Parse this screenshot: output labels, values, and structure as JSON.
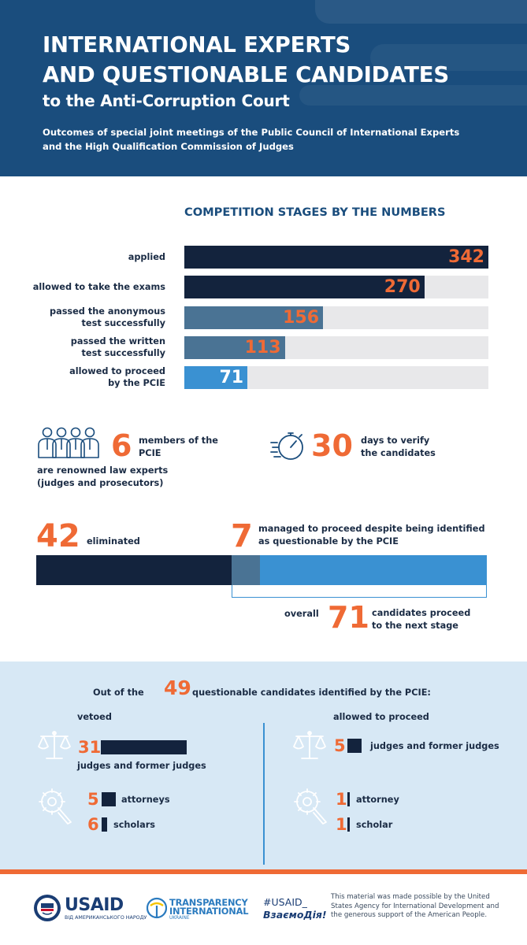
{
  "header": {
    "title_line1": "INTERNATIONAL EXPERTS",
    "title_line2": "AND QUESTIONABLE CANDIDATES",
    "subtitle": "to the Anti-Corruption Court",
    "description_line1": "Outcomes of special joint meetings of the Public Council of International Experts",
    "description_line2": "and the High Qualification Commission of Judges"
  },
  "stages": {
    "title": "COMPETITION STAGES BY THE NUMBERS",
    "max": 342,
    "items": [
      {
        "label_line1": "applied",
        "label_line2": "",
        "value": 342,
        "fill": "#13233d",
        "text": "#ef6a35"
      },
      {
        "label_line1": "allowed to take the exams",
        "label_line2": "",
        "value": 270,
        "fill": "#13233d",
        "text": "#ef6a35"
      },
      {
        "label_line1": "passed the anonymous",
        "label_line2": "test successfully",
        "value": 156,
        "fill": "#4a7394",
        "text": "#ef6a35"
      },
      {
        "label_line1": "passed the written",
        "label_line2": "test successfully",
        "value": 113,
        "fill": "#4a7394",
        "text": "#ef6a35"
      },
      {
        "label_line1": "allowed to proceed",
        "label_line2": "by the PCIE",
        "value": 71,
        "fill": "#3a91d2",
        "text": "#ffffff"
      }
    ]
  },
  "pcie": {
    "number": "6",
    "text_line1": "members of the",
    "text_line2": "PCIE",
    "text_line3": "are renowned law experts",
    "text_line4": "(judges and prosecutors)"
  },
  "verify": {
    "number": "30",
    "text_line1": "days to verify",
    "text_line2": "the candidates"
  },
  "outcome": {
    "eliminated_number": "42",
    "eliminated_label": "eliminated",
    "questionable_number": "7",
    "questionable_line1": "managed to proceed despite being identified",
    "questionable_line2": "as questionable by the PCIE",
    "overall_label": "overall",
    "overall_number": "71",
    "overall_line1": "candidates proceed",
    "overall_line2": "to the next stage"
  },
  "questionable": {
    "intro_before": "Out of the",
    "intro_number": "49",
    "intro_after": "questionable candidates identified by the PCIE:",
    "vetoed": {
      "heading": "vetoed",
      "judges_count": "31",
      "judges_label": "judges and former judges",
      "attorneys_count": "5",
      "attorneys_label": "attorneys",
      "scholars_count": "6",
      "scholars_label": "scholars"
    },
    "allowed": {
      "heading": "allowed to proceed",
      "judges_count": "5",
      "judges_label": "judges and former judges",
      "attorneys_count": "1",
      "attorneys_label": "attorney",
      "scholars_count": "1",
      "scholars_label": "scholar"
    }
  },
  "footer": {
    "usaid_name": "USAID",
    "usaid_tagline": "ВІД АМЕРИКАНСЬКОГО НАРОДУ",
    "ti_line1": "TRANSPARENCY",
    "ti_line2": "INTERNATIONAL",
    "ti_line3": "UKRAINE",
    "hashtag_line1": "#USAID_",
    "hashtag_line2": "ВзаємоДія!",
    "disclaimer_line1": "This material was made possible by the United",
    "disclaimer_line2": "States Agency for International Development and",
    "disclaimer_line3": "the generous support of the American People."
  },
  "icons": [
    "people-group-icon",
    "stopwatch-icon",
    "scales-icon",
    "magnifier-gear-icon",
    "usaid-seal-icon",
    "ti-logo-icon"
  ],
  "colors": {
    "navy": "#13233d",
    "header_blue": "#1a4d7d",
    "accent_orange": "#ef6a35",
    "bright_blue": "#3a91d2",
    "steel_blue": "#4a7394",
    "panel_bg": "#d7e8f5"
  }
}
